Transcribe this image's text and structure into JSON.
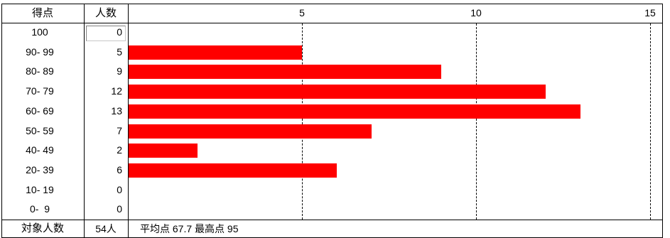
{
  "header": {
    "score_label": "得点",
    "count_label": "人数"
  },
  "chart_data": {
    "type": "bar",
    "orientation": "horizontal",
    "categories": [
      "100",
      "90- 99",
      "80- 89",
      "70- 79",
      "60- 69",
      "50- 59",
      "40- 49",
      "20- 39",
      "10- 19",
      "0-  9"
    ],
    "values": [
      0,
      5,
      9,
      12,
      13,
      7,
      2,
      6,
      0,
      0
    ],
    "xlim": [
      0,
      15
    ],
    "xticks": [
      5,
      10,
      15
    ],
    "grid": true,
    "bar_color": "#ff0000"
  },
  "footer": {
    "total_label": "対象人数",
    "total_value": "54人",
    "summary": "平均点 67.7 最高点 95"
  }
}
